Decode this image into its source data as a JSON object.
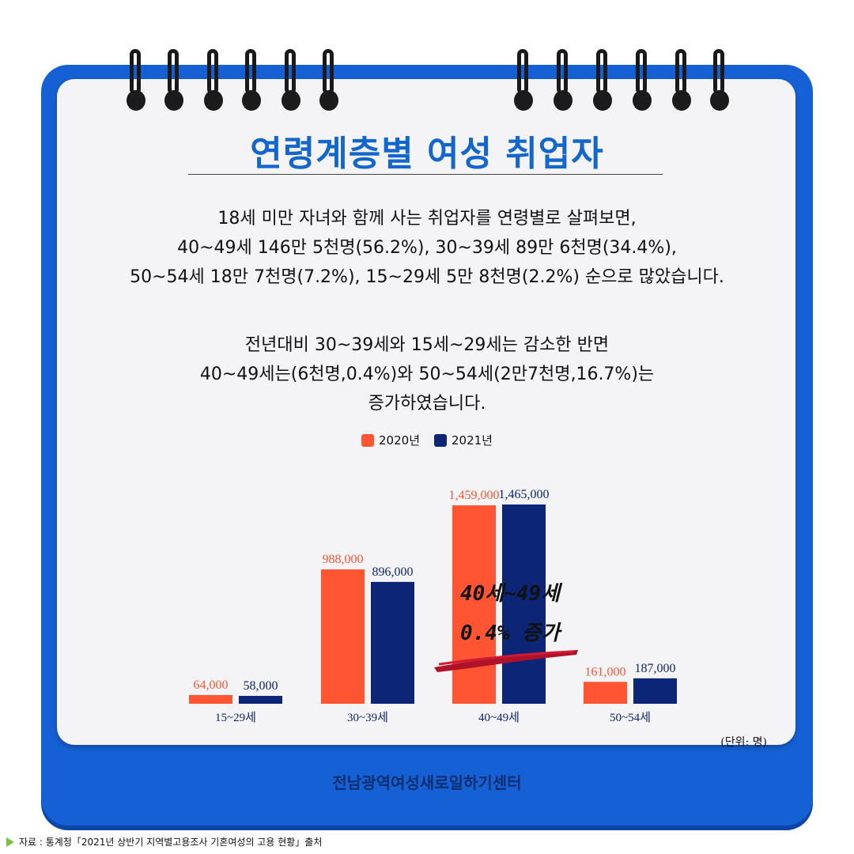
{
  "title": "연령계층별 여성 취업자",
  "paragraph1": [
    "18세 미만 자녀와 함께 사는 취업자를 연령별로 살펴보면,",
    "40~49세 146만 5천명(56.2%), 30~39세 89만 6천명(34.4%),",
    "50~54세 18만 7천명(7.2%), 15~29세 5만 8천명(2.2%) 순으로 많았습니다."
  ],
  "paragraph2": [
    "전년대비 30~39세와 15세~29세는 감소한 반면",
    "40~49세는(6천명,0.4%)와 50~54세(2만7천명,16.7%)는",
    "증가하였습니다."
  ],
  "annotation": {
    "line1": "40세~49세",
    "line2": "0.4% 증가"
  },
  "unit_label": "(단위: 명)",
  "organization": "전남광역여성새로일하기센터",
  "source": "자료 : 통계청「2021년 상반기 지역별고용조사 기혼여성의 고용 현황」출처",
  "colors": {
    "series_2020": "#ff5533",
    "series_2021": "#0d2577",
    "title": "#1266cc",
    "frame": "#1560d4"
  },
  "chart_data": {
    "type": "bar",
    "categories": [
      "15~29세",
      "30~39세",
      "40~49세",
      "50~54세"
    ],
    "series": [
      {
        "name": "2020년",
        "values": [
          64000,
          988000,
          1459000,
          161000
        ],
        "labels": [
          "64,000",
          "988,000",
          "1,459,000",
          "161,000"
        ]
      },
      {
        "name": "2021년",
        "values": [
          58000,
          896000,
          1465000,
          187000
        ],
        "labels": [
          "58,000",
          "896,000",
          "1,465,000",
          "187,000"
        ]
      }
    ],
    "ylim": [
      0,
      1500000
    ],
    "legend": "top-center",
    "grid": false
  }
}
